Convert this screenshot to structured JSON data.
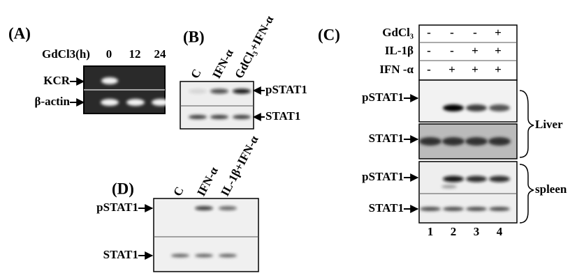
{
  "panel_a": {
    "label": "(A)",
    "row_label": "GdCl3(h)",
    "lanes": [
      "0",
      "12",
      "24"
    ],
    "bands": [
      "KCR",
      "β-actin"
    ]
  },
  "panel_b": {
    "label": "(B)",
    "lanes": [
      "C",
      "IFN-α",
      "GdCl₃+IFN-α"
    ],
    "bands": [
      "pSTAT1",
      "STAT1"
    ]
  },
  "panel_c": {
    "label": "(C)",
    "treatments": [
      {
        "name": "GdCl₃",
        "signs": [
          "-",
          "-",
          "-",
          "+"
        ]
      },
      {
        "name": "IL-1β",
        "signs": [
          "-",
          "-",
          "+",
          "+"
        ]
      },
      {
        "name": "IFN -α",
        "signs": [
          "-",
          "+",
          "+",
          "+"
        ]
      }
    ],
    "liver_bands": [
      "pSTAT1",
      "STAT1"
    ],
    "liver_label": "Liver",
    "spleen_bands": [
      "pSTAT1",
      "STAT1"
    ],
    "spleen_label": "spleen",
    "lanes": [
      "1",
      "2",
      "3",
      "4"
    ]
  },
  "panel_d": {
    "label": "(D)",
    "lanes": [
      "C",
      "IFN-α",
      "IL-1β+IFN-α"
    ],
    "bands": [
      "pSTAT1",
      "STAT1"
    ]
  }
}
